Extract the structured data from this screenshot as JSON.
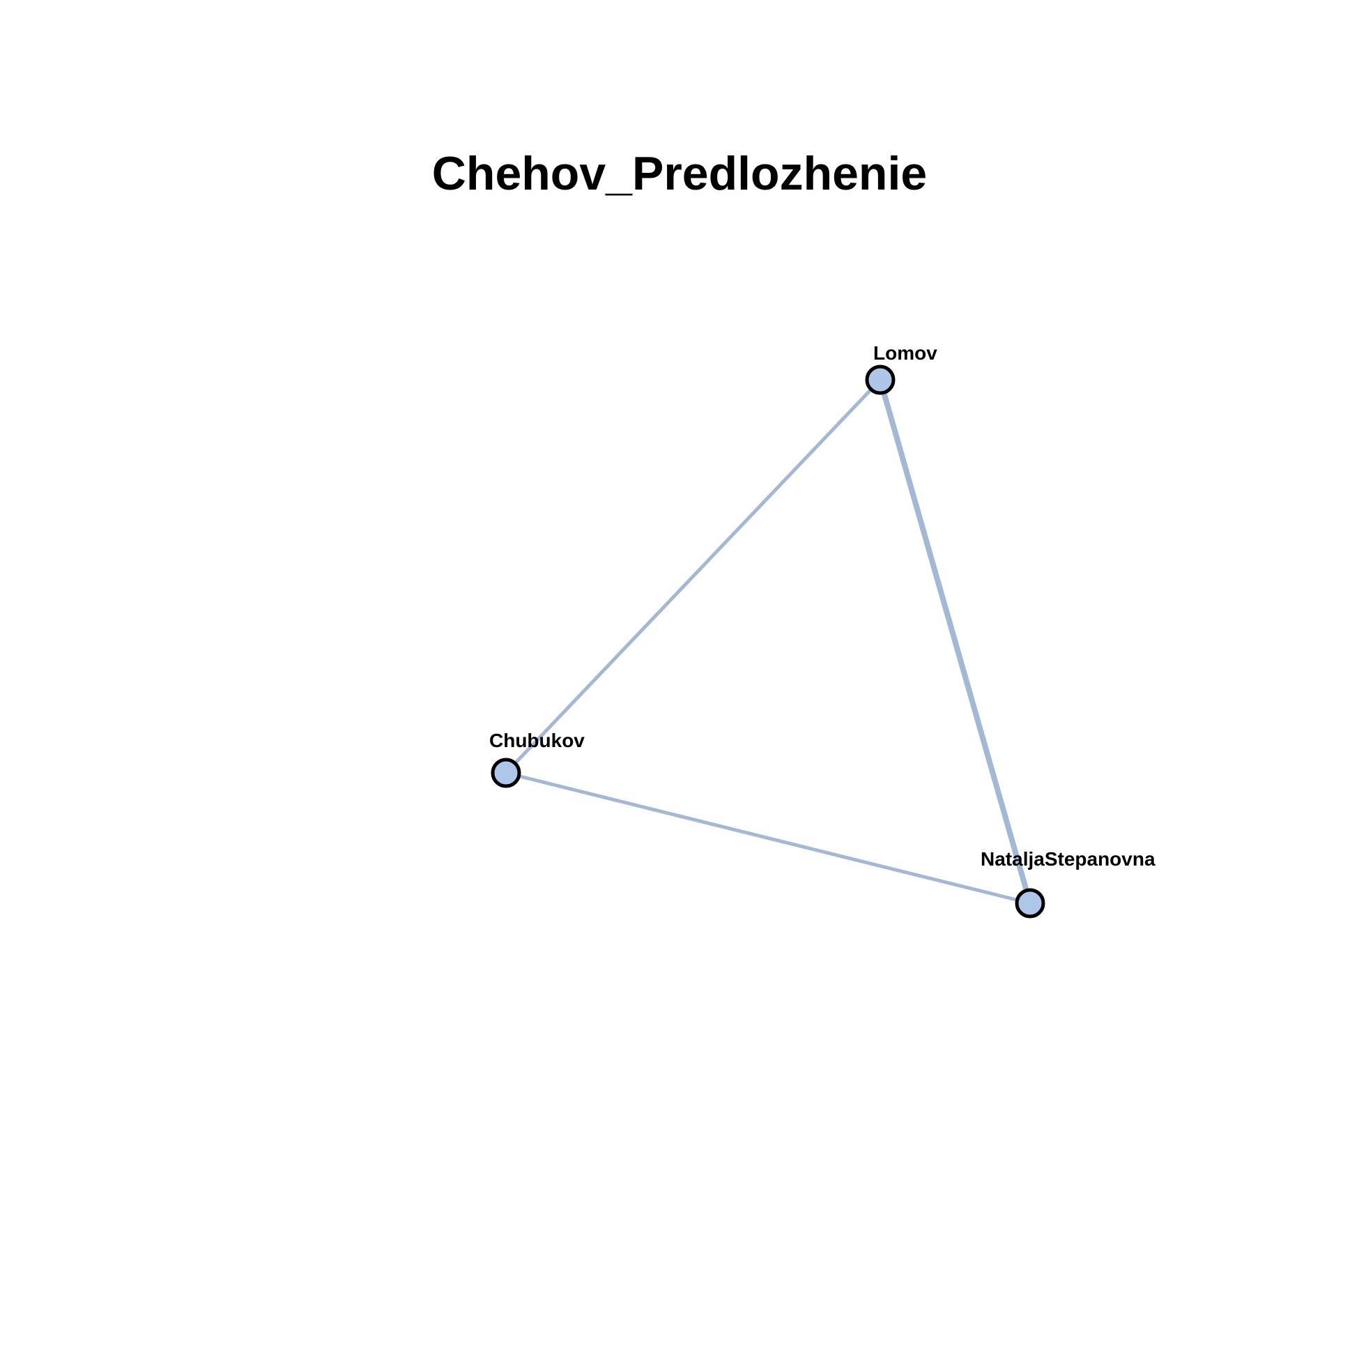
{
  "title": "Chehov_Predlozhenie",
  "colors": {
    "node_fill": "#aec7e8",
    "node_stroke": "#000000",
    "edge": "#a3b8d4",
    "background": "#ffffff"
  },
  "nodes": [
    {
      "id": "lomov",
      "label": "Lomov"
    },
    {
      "id": "chubukov",
      "label": "Chubukov"
    },
    {
      "id": "natalja",
      "label": "NataljaStepanovna"
    }
  ],
  "edges": [
    {
      "source": "lomov",
      "target": "chubukov",
      "weight": 1
    },
    {
      "source": "lomov",
      "target": "natalja",
      "weight": 1.6
    },
    {
      "source": "chubukov",
      "target": "natalja",
      "weight": 1
    }
  ]
}
